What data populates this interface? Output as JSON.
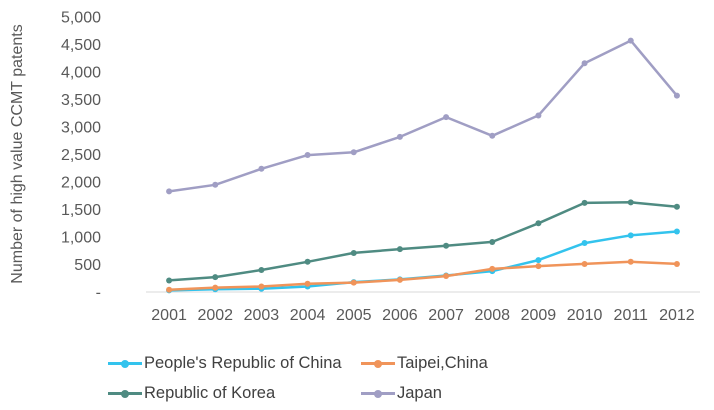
{
  "chart_data": {
    "type": "line",
    "title": "",
    "xlabel": "",
    "ylabel": "Number of high value CCMT patents",
    "x": [
      "2001",
      "2002",
      "2003",
      "2004",
      "2005",
      "2006",
      "2007",
      "2008",
      "2009",
      "2010",
      "2011",
      "2012"
    ],
    "ylim": [
      0,
      5000
    ],
    "yticks": [
      0,
      500,
      1000,
      1500,
      2000,
      2500,
      3000,
      3500,
      4000,
      4500,
      5000
    ],
    "ytick_labels": [
      "-",
      "500",
      "1,000",
      "1,500",
      "2,000",
      "2,500",
      "3,000",
      "3,500",
      "4,000",
      "4,500",
      "5,000"
    ],
    "grid": false,
    "legend_position": "bottom",
    "series": [
      {
        "name": "People's Republic of China",
        "color": "#33c3ed",
        "values": [
          30,
          50,
          60,
          100,
          180,
          230,
          300,
          380,
          580,
          890,
          1030,
          1100
        ]
      },
      {
        "name": "Taipei,China",
        "color": "#f0945a",
        "values": [
          40,
          80,
          100,
          150,
          170,
          220,
          290,
          420,
          470,
          510,
          550,
          510
        ]
      },
      {
        "name": "Republic of Korea",
        "color": "#4f8b82",
        "values": [
          210,
          270,
          400,
          550,
          710,
          780,
          840,
          910,
          1250,
          1620,
          1630,
          1550
        ]
      },
      {
        "name": "Japan",
        "color": "#a09ec4",
        "values": [
          1830,
          1950,
          2240,
          2490,
          2540,
          2820,
          3180,
          2840,
          3210,
          4160,
          4570,
          3570
        ]
      }
    ]
  }
}
